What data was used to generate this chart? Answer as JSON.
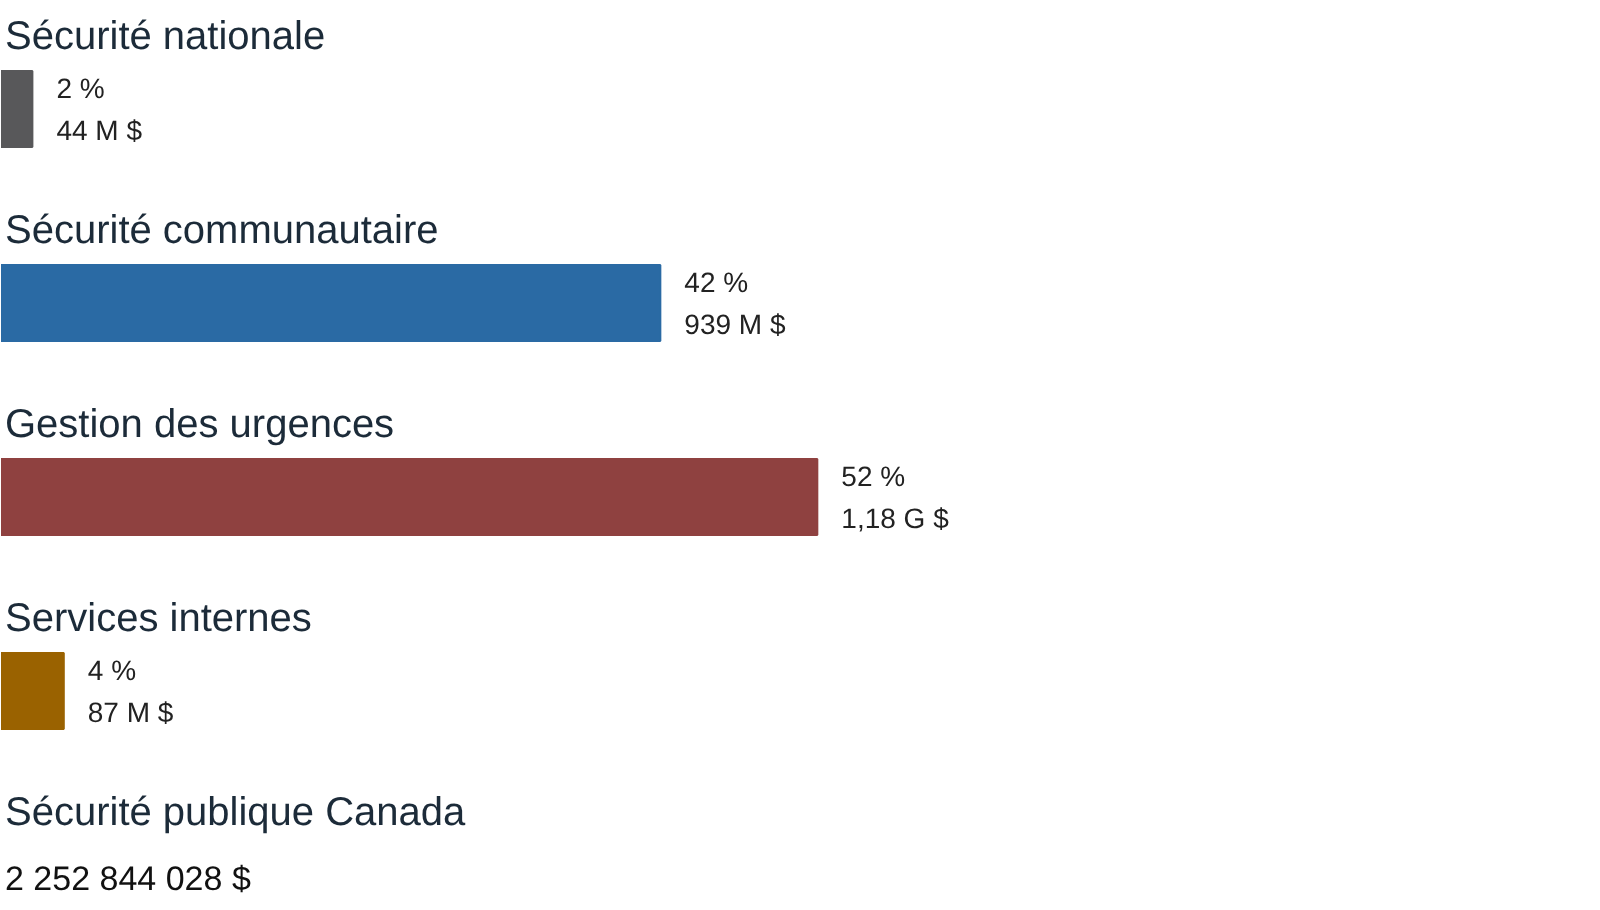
{
  "chart_data": {
    "type": "bar",
    "orientation": "horizontal",
    "categories": [
      "Sécurité nationale",
      "Sécurité communautaire",
      "Gestion des urgences",
      "Services internes"
    ],
    "values": [
      2,
      42,
      52,
      4
    ],
    "colors": [
      "#58585a",
      "#2a6aa4",
      "#8f4140",
      "#9a6200"
    ],
    "value_labels": [
      "2 %\n44 M $",
      "42 %\n939 M $",
      "52 %\n1,18 G $",
      "4 %\n87 M $"
    ],
    "annotations": [
      "Sécurité publique Canada",
      "2 252 844 028  $"
    ]
  }
}
